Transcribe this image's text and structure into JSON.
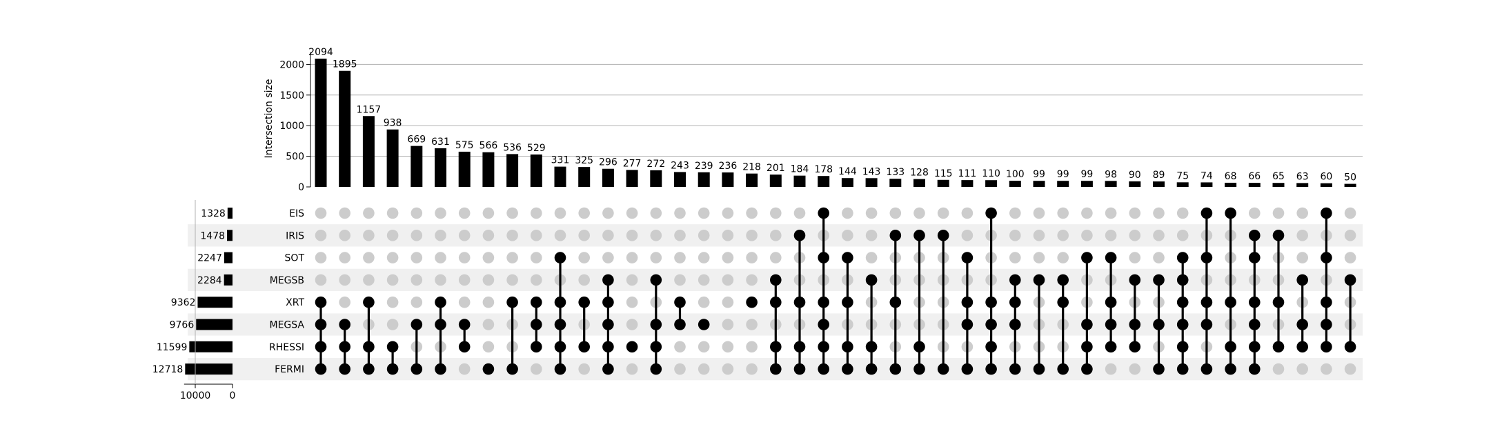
{
  "chart_data": {
    "type": "upset",
    "ylabel": "Intersection size",
    "ylim": [
      0,
      2200
    ],
    "yticks": [
      "0",
      "500",
      "1000",
      "1500",
      "2000"
    ],
    "grid": true,
    "set_size_ticks": [
      "10000",
      "0"
    ],
    "set_size_xlim": [
      0,
      13000
    ],
    "sets": [
      "EIS",
      "IRIS",
      "SOT",
      "MEGSB",
      "XRT",
      "MEGSA",
      "RHESSI",
      "FERMI"
    ],
    "set_sizes": [
      1328,
      1478,
      2247,
      2284,
      9362,
      9766,
      11599,
      12718
    ],
    "intersections": [
      {
        "value": 2094,
        "label": "2094",
        "members": [
          "XRT",
          "MEGSA",
          "RHESSI",
          "FERMI"
        ]
      },
      {
        "value": 1895,
        "label": "1895",
        "members": [
          "MEGSA",
          "RHESSI",
          "FERMI"
        ]
      },
      {
        "value": 1157,
        "label": "1157",
        "members": [
          "XRT",
          "RHESSI",
          "FERMI"
        ]
      },
      {
        "value": 938,
        "label": "938",
        "members": [
          "RHESSI",
          "FERMI"
        ]
      },
      {
        "value": 669,
        "label": "669",
        "members": [
          "MEGSA",
          "FERMI"
        ]
      },
      {
        "value": 631,
        "label": "631",
        "members": [
          "XRT",
          "MEGSA",
          "FERMI"
        ]
      },
      {
        "value": 575,
        "label": "575",
        "members": [
          "MEGSA",
          "RHESSI"
        ]
      },
      {
        "value": 566,
        "label": "566",
        "members": [
          "FERMI"
        ]
      },
      {
        "value": 536,
        "label": "536",
        "members": [
          "XRT",
          "FERMI"
        ]
      },
      {
        "value": 529,
        "label": "529",
        "members": [
          "XRT",
          "MEGSA",
          "RHESSI"
        ]
      },
      {
        "value": 331,
        "label": "331",
        "members": [
          "SOT",
          "XRT",
          "MEGSA",
          "RHESSI",
          "FERMI"
        ]
      },
      {
        "value": 325,
        "label": "325",
        "members": [
          "XRT",
          "RHESSI"
        ]
      },
      {
        "value": 296,
        "label": "296",
        "members": [
          "MEGSB",
          "XRT",
          "MEGSA",
          "RHESSI",
          "FERMI"
        ]
      },
      {
        "value": 277,
        "label": "277",
        "members": [
          "RHESSI"
        ]
      },
      {
        "value": 272,
        "label": "272",
        "members": [
          "MEGSB",
          "MEGSA",
          "RHESSI",
          "FERMI"
        ]
      },
      {
        "value": 243,
        "label": "243",
        "members": [
          "XRT",
          "MEGSA"
        ]
      },
      {
        "value": 239,
        "label": "239",
        "members": [
          "MEGSA"
        ]
      },
      {
        "value": 236,
        "label": "236",
        "members": []
      },
      {
        "value": 218,
        "label": "218",
        "members": [
          "XRT"
        ]
      },
      {
        "value": 201,
        "label": "201",
        "members": [
          "MEGSB",
          "XRT",
          "RHESSI",
          "FERMI"
        ]
      },
      {
        "value": 184,
        "label": "184",
        "members": [
          "IRIS",
          "XRT",
          "RHESSI",
          "FERMI"
        ]
      },
      {
        "value": 178,
        "label": "178",
        "members": [
          "EIS",
          "SOT",
          "XRT",
          "MEGSA",
          "RHESSI",
          "FERMI"
        ]
      },
      {
        "value": 144,
        "label": "144",
        "members": [
          "SOT",
          "XRT",
          "RHESSI",
          "FERMI"
        ]
      },
      {
        "value": 143,
        "label": "143",
        "members": [
          "MEGSB",
          "RHESSI",
          "FERMI"
        ]
      },
      {
        "value": 133,
        "label": "133",
        "members": [
          "IRIS",
          "XRT",
          "FERMI"
        ]
      },
      {
        "value": 128,
        "label": "128",
        "members": [
          "IRIS",
          "RHESSI",
          "FERMI"
        ]
      },
      {
        "value": 115,
        "label": "115",
        "members": [
          "IRIS",
          "FERMI"
        ]
      },
      {
        "value": 111,
        "label": "111",
        "members": [
          "SOT",
          "XRT",
          "MEGSA",
          "FERMI"
        ]
      },
      {
        "value": 110,
        "label": "110",
        "members": [
          "EIS",
          "XRT",
          "MEGSA",
          "RHESSI",
          "FERMI"
        ]
      },
      {
        "value": 100,
        "label": "100",
        "members": [
          "MEGSB",
          "XRT",
          "MEGSA",
          "FERMI"
        ]
      },
      {
        "value": 99,
        "label": "99",
        "members": [
          "MEGSB",
          "FERMI"
        ]
      },
      {
        "value": 99,
        "label": "99",
        "members": [
          "MEGSB",
          "XRT",
          "FERMI"
        ]
      },
      {
        "value": 99,
        "label": "99",
        "members": [
          "SOT",
          "MEGSA",
          "RHESSI",
          "FERMI"
        ]
      },
      {
        "value": 98,
        "label": "98",
        "members": [
          "SOT",
          "XRT",
          "MEGSA",
          "RHESSI"
        ]
      },
      {
        "value": 90,
        "label": "90",
        "members": [
          "MEGSB",
          "MEGSA",
          "RHESSI"
        ]
      },
      {
        "value": 89,
        "label": "89",
        "members": [
          "MEGSB",
          "MEGSA",
          "FERMI"
        ]
      },
      {
        "value": 75,
        "label": "75",
        "members": [
          "SOT",
          "MEGSB",
          "XRT",
          "MEGSA",
          "RHESSI",
          "FERMI"
        ]
      },
      {
        "value": 74,
        "label": "74",
        "members": [
          "EIS",
          "SOT",
          "XRT",
          "MEGSA",
          "FERMI"
        ]
      },
      {
        "value": 68,
        "label": "68",
        "members": [
          "EIS",
          "XRT",
          "RHESSI",
          "FERMI"
        ]
      },
      {
        "value": 66,
        "label": "66",
        "members": [
          "IRIS",
          "SOT",
          "XRT",
          "MEGSA",
          "RHESSI",
          "FERMI"
        ]
      },
      {
        "value": 65,
        "label": "65",
        "members": [
          "IRIS",
          "XRT",
          "RHESSI"
        ]
      },
      {
        "value": 63,
        "label": "63",
        "members": [
          "MEGSB",
          "MEGSA",
          "RHESSI"
        ]
      },
      {
        "value": 60,
        "label": "60",
        "members": [
          "EIS",
          "SOT",
          "XRT",
          "MEGSA",
          "RHESSI"
        ]
      },
      {
        "value": 50,
        "label": "50",
        "members": [
          "MEGSB",
          "RHESSI"
        ]
      }
    ],
    "colors": {
      "bar": "#000000",
      "dot_on": "#000000",
      "dot_off": "#cccccc",
      "stripe": "#f0f0f0",
      "grid": "#b0b0b0"
    }
  }
}
